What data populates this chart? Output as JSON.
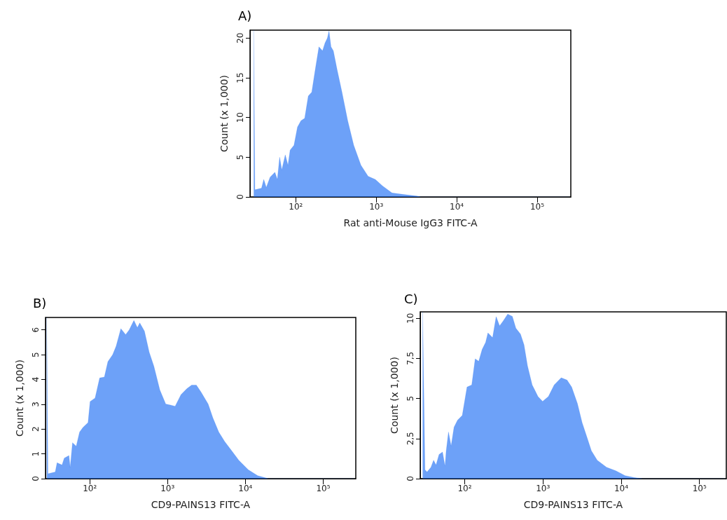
{
  "chart_data": [
    {
      "type": "area",
      "title": "A)",
      "xlabel": "Rat anti-Mouse IgG3 FITC-A",
      "ylabel": "Count (x 1,000)",
      "log": "x",
      "xlim": [
        27,
        262144
      ],
      "xticks": [
        {
          "value": 100,
          "label": "10²"
        },
        {
          "value": 1000,
          "label": "10³"
        },
        {
          "value": 10000,
          "label": "10⁴"
        },
        {
          "value": 100000,
          "label": "10⁵"
        }
      ],
      "ylim": [
        0,
        21
      ],
      "yticks": [
        0,
        5,
        10,
        15,
        20
      ],
      "color": "#1f6ff5",
      "x": [
        30,
        31,
        37.5,
        40,
        43,
        48,
        55,
        59,
        63,
        67,
        74,
        80,
        85,
        95,
        105,
        116,
        129,
        143,
        158,
        175,
        194,
        215,
        231,
        247,
        259,
        274,
        293,
        325,
        373,
        442,
        525,
        645,
        792,
        973,
        1195,
        1570,
        2210,
        3230,
        3580,
        250000
      ],
      "values": [
        21,
        0.9,
        1.1,
        2.2,
        1.2,
        2.5,
        3.1,
        2.2,
        5.0,
        3.4,
        5.3,
        4.0,
        5.9,
        6.5,
        8.8,
        9.6,
        9.9,
        12.7,
        13.2,
        16.1,
        18.9,
        18.4,
        19.4,
        20.0,
        20.9,
        18.9,
        18.4,
        16.1,
        13.3,
        9.6,
        6.5,
        4.0,
        2.6,
        2.2,
        1.4,
        0.5,
        0.3,
        0.1,
        0,
        0
      ]
    },
    {
      "type": "area",
      "title": "B)",
      "xlabel": "CD9-PAINS13 FITC-A",
      "ylabel": "Count (x 1,000)",
      "log": "x",
      "xlim": [
        27,
        262144
      ],
      "xticks": [
        {
          "value": 100,
          "label": "10²"
        },
        {
          "value": 1000,
          "label": "10³"
        },
        {
          "value": 10000,
          "label": "10⁴"
        },
        {
          "value": 100000,
          "label": "10⁵"
        }
      ],
      "ylim": [
        0,
        6.5
      ],
      "yticks": [
        0,
        1,
        2,
        3,
        4,
        5,
        6
      ],
      "color": "#1f6ff5",
      "x": [
        28,
        29,
        36,
        38,
        44,
        47,
        54,
        56,
        60,
        67,
        74,
        82,
        95,
        101,
        117,
        134,
        154,
        171,
        197,
        218,
        251,
        289,
        321,
        369,
        409,
        439,
        504,
        580,
        667,
        794,
        946,
        1087,
        1250,
        1489,
        1771,
        2037,
        2343,
        2692,
        3319,
        3818,
        4545,
        5410,
        6668,
        8222,
        10870,
        14380,
        18360,
        19700,
        250000
      ],
      "values": [
        6.5,
        0.2,
        0.27,
        0.64,
        0.55,
        0.83,
        0.93,
        0.45,
        1.45,
        1.31,
        1.88,
        2.07,
        2.26,
        3.11,
        3.25,
        4.06,
        4.1,
        4.72,
        5.0,
        5.34,
        6.05,
        5.81,
        6.0,
        6.38,
        6.09,
        6.28,
        5.95,
        5.1,
        4.53,
        3.58,
        3.01,
        2.97,
        2.92,
        3.39,
        3.63,
        3.77,
        3.77,
        3.49,
        3.01,
        2.45,
        1.88,
        1.5,
        1.12,
        0.74,
        0.36,
        0.12,
        0.03,
        0,
        0
      ]
    },
    {
      "type": "area",
      "title": "C)",
      "xlabel": "CD9-PAINS13 FITC-A",
      "ylabel": "Count (x 1,000)",
      "log": "x",
      "xlim": [
        27,
        220000
      ],
      "xticks": [
        {
          "value": 100,
          "label": "10²"
        },
        {
          "value": 1000,
          "label": "10³"
        },
        {
          "value": 10000,
          "label": "10⁴"
        },
        {
          "value": 100000,
          "label": "10⁵"
        }
      ],
      "ylim": [
        0,
        10.4
      ],
      "yticks": [
        0,
        {
          "value": 2.5,
          "label": "2,5"
        },
        5,
        {
          "value": 7.5,
          "label": "7,5"
        },
        10
      ],
      "color": "#1f6ff5",
      "x": [
        29,
        31,
        33,
        37,
        40,
        43,
        47,
        52,
        56,
        58,
        62,
        67,
        73,
        81,
        93,
        107,
        123,
        136,
        151,
        167,
        185,
        198,
        227,
        252,
        279,
        309,
        354,
        406,
        450,
        516,
        572,
        634,
        727,
        862,
        989,
        1173,
        1391,
        1709,
        2028,
        2325,
        2757,
        3160,
        3624,
        4154,
        4934,
        6486,
        8520,
        11200,
        14720,
        18700,
        214000
      ],
      "values": [
        10.4,
        0.56,
        0.41,
        0.71,
        1.15,
        0.85,
        1.51,
        1.66,
        0.78,
        1.74,
        2.91,
        2.03,
        3.21,
        3.65,
        3.94,
        5.71,
        5.85,
        7.47,
        7.32,
        8.06,
        8.5,
        9.09,
        8.79,
        10.1,
        9.53,
        9.82,
        10.26,
        10.12,
        9.38,
        9.01,
        8.35,
        7.03,
        5.85,
        5.12,
        4.82,
        5.12,
        5.85,
        6.29,
        6.15,
        5.71,
        4.68,
        3.5,
        2.62,
        1.74,
        1.15,
        0.71,
        0.49,
        0.19,
        0.07,
        0,
        0
      ]
    }
  ]
}
